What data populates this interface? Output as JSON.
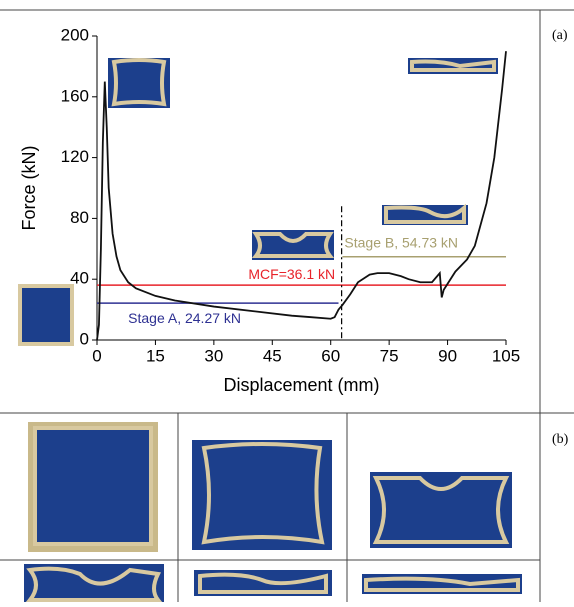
{
  "chart_data": {
    "type": "line",
    "x_label": "Displacement (mm)",
    "y_label": "Force (kN)",
    "x": [
      0,
      0.5,
      1,
      1.5,
      2,
      2.5,
      3,
      4,
      5,
      6,
      8,
      10,
      15,
      20,
      30,
      40,
      50,
      55,
      60,
      61,
      62,
      63,
      65,
      67,
      70,
      72,
      75,
      78,
      80,
      83,
      86,
      88,
      88.5,
      89,
      92,
      95,
      97,
      100,
      102,
      104,
      105
    ],
    "values": [
      0,
      10,
      60,
      130,
      170,
      140,
      100,
      70,
      55,
      46,
      38,
      34,
      29,
      26,
      22,
      19,
      16,
      15,
      14,
      15,
      20,
      23,
      30,
      38,
      43,
      44,
      44,
      42,
      40,
      38,
      38,
      44,
      28,
      33,
      45,
      53,
      62,
      90,
      120,
      165,
      190
    ],
    "color": "#111111",
    "xlim": [
      0,
      105
    ],
    "xticks": [
      0,
      15,
      30,
      45,
      60,
      75,
      90,
      105
    ],
    "ylim": [
      0,
      200
    ],
    "yticks": [
      0,
      40,
      80,
      120,
      160,
      200
    ],
    "reference_lines": [
      {
        "value": 36.1,
        "label": "MCF=36.1 kN",
        "color": "#e8232a",
        "xrange": [
          0,
          105
        ]
      },
      {
        "value": 24.27,
        "label": "Stage A, 24.27 kN",
        "color": "#2e3192",
        "xrange": [
          0,
          62
        ]
      },
      {
        "value": 54.73,
        "label": "Stage B, 54.73 kN",
        "color": "#a8a070",
        "xrange": [
          63,
          105
        ]
      }
    ],
    "vline": 62.8
  },
  "panel_labels": [
    "(a)",
    "(b)"
  ]
}
